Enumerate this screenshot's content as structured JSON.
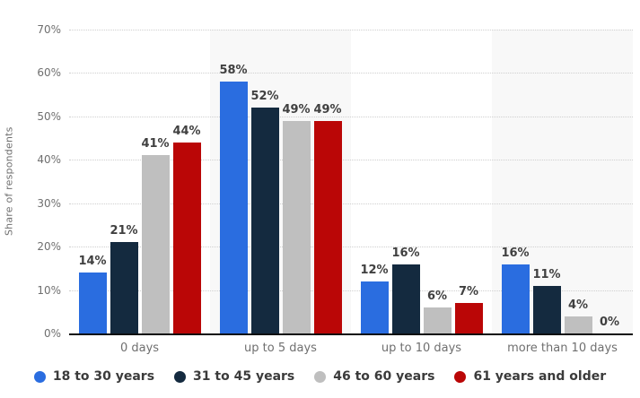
{
  "chart_data": {
    "type": "bar",
    "title": "",
    "ylabel": "Share of respondents",
    "xlabel": "",
    "ylim": [
      0,
      70
    ],
    "yticks": [
      0,
      10,
      20,
      30,
      40,
      50,
      60,
      70
    ],
    "unit_suffix": "%",
    "grid": "horizontal dotted",
    "legend_position": "bottom",
    "categories": [
      "0 days",
      "up to 5 days",
      "up to 10 days",
      "more than 10 days"
    ],
    "series": [
      {
        "name": "18 to 30 years",
        "color": "#2A6DE0",
        "values": [
          14,
          58,
          12,
          16
        ]
      },
      {
        "name": "31 to 45 years",
        "color": "#142A3F",
        "values": [
          21,
          52,
          16,
          11
        ]
      },
      {
        "name": "46 to 60 years",
        "color": "#BFBFBF",
        "values": [
          41,
          49,
          6,
          4
        ]
      },
      {
        "name": "61 years and older",
        "color": "#BA0606",
        "values": [
          44,
          49,
          7,
          0
        ]
      }
    ],
    "band_colors": [
      "#ffffff",
      "#f8f8f8",
      "#ffffff",
      "#f8f8f8"
    ],
    "colors": {
      "gridline": "#cfcfcf",
      "axis_line": "#0d0d0d",
      "tick_text": "#6f6f6f",
      "data_label_text": "#404040",
      "legend_text": "#3b3b3b",
      "background": "#ffffff"
    }
  }
}
